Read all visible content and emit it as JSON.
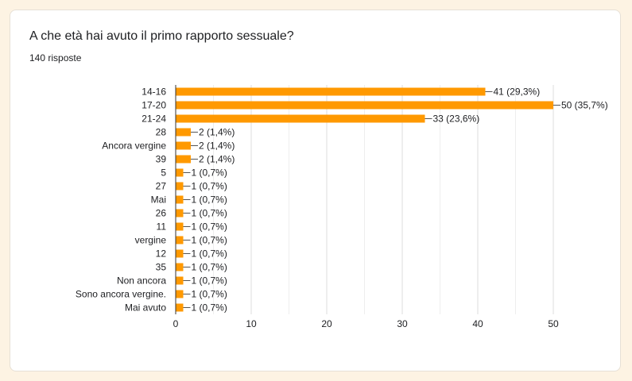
{
  "card": {
    "title": "A che età hai avuto il primo rapporto sessuale?",
    "responses": "140 risposte"
  },
  "colors": {
    "bar": "#ff9900",
    "grid": "#e0e0e0",
    "axis": "#333333",
    "text": "#202124"
  },
  "chart_data": {
    "type": "bar",
    "orientation": "horizontal",
    "categories": [
      "14-16",
      "17-20",
      "21-24",
      "28",
      "Ancora vergine",
      "39",
      "5",
      "27",
      "Mai",
      "26",
      "11",
      "vergine",
      "12",
      "35",
      "Non ancora",
      "Sono ancora vergine.",
      "Mai avuto"
    ],
    "values": [
      41,
      50,
      33,
      2,
      2,
      2,
      1,
      1,
      1,
      1,
      1,
      1,
      1,
      1,
      1,
      1,
      1
    ],
    "data_labels": [
      "41 (29,3%)",
      "50 (35,7%)",
      "33 (23,6%)",
      "2 (1,4%)",
      "2 (1,4%)",
      "2 (1,4%)",
      "1 (0,7%)",
      "1 (0,7%)",
      "1 (0,7%)",
      "1 (0,7%)",
      "1 (0,7%)",
      "1 (0,7%)",
      "1 (0,7%)",
      "1 (0,7%)",
      "1 (0,7%)",
      "1 (0,7%)",
      "1 (0,7%)"
    ],
    "xlim": [
      0,
      50
    ],
    "xticks": [
      0,
      10,
      20,
      30,
      40,
      50
    ],
    "grid": true
  }
}
